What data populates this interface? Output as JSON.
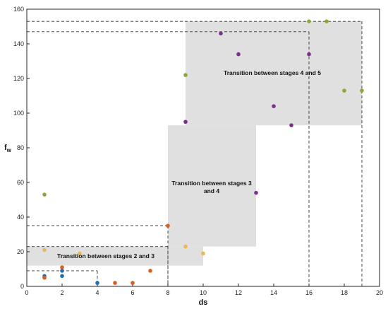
{
  "chart_data": {
    "type": "scatter",
    "title": "",
    "xlabel": "ds",
    "ylabel": "f_w",
    "xlim": [
      0,
      20
    ],
    "ylim": [
      0,
      160
    ],
    "xticks": [
      0,
      2,
      4,
      6,
      8,
      10,
      12,
      14,
      16,
      18,
      20
    ],
    "yticks": [
      0,
      20,
      40,
      60,
      80,
      100,
      120,
      140,
      160
    ],
    "grid": false,
    "colors": {
      "blue": "#1f6fb2",
      "orange": "#d95f1e",
      "yellow": "#e8b85a",
      "purple": "#7b2f8c",
      "green": "#8aa83a",
      "region_fill": "#e0e0e0",
      "guide_line": "#333333"
    },
    "series": [
      {
        "color_key": "blue",
        "points": [
          [
            1,
            6
          ],
          [
            2,
            6
          ],
          [
            2,
            9
          ],
          [
            4,
            2
          ]
        ]
      },
      {
        "color_key": "orange",
        "points": [
          [
            1,
            5
          ],
          [
            2,
            11
          ],
          [
            5,
            2
          ],
          [
            6,
            2
          ],
          [
            7,
            9
          ],
          [
            8,
            35
          ]
        ]
      },
      {
        "color_key": "yellow",
        "points": [
          [
            1,
            21
          ],
          [
            3,
            19
          ],
          [
            9,
            23
          ],
          [
            10,
            19
          ]
        ]
      },
      {
        "color_key": "purple",
        "points": [
          [
            9,
            95
          ],
          [
            11,
            146
          ],
          [
            12,
            134
          ],
          [
            13,
            54
          ],
          [
            14,
            104
          ],
          [
            15,
            93
          ],
          [
            16,
            134
          ]
        ]
      },
      {
        "color_key": "green",
        "points": [
          [
            1,
            53
          ],
          [
            9,
            122
          ],
          [
            16,
            153
          ],
          [
            17,
            153
          ],
          [
            18,
            113
          ],
          [
            19,
            113
          ]
        ]
      }
    ],
    "regions": [
      {
        "label": "Transition between stages 2 and 3",
        "x": [
          0,
          10
        ],
        "y": [
          12,
          23
        ]
      },
      {
        "label": "Transition between stages 3 and 4",
        "x": [
          8,
          13
        ],
        "y": [
          23,
          93
        ]
      },
      {
        "label": "Transition between stages 4 and 5",
        "x": [
          9,
          19
        ],
        "y": [
          93,
          153
        ]
      }
    ],
    "guides": [
      {
        "x": 4,
        "y": 9
      },
      {
        "x": 8,
        "y": 35
      },
      {
        "x": 8,
        "y": 23
      },
      {
        "x": 16,
        "y": 147
      },
      {
        "x": 19,
        "y": 153
      }
    ]
  }
}
